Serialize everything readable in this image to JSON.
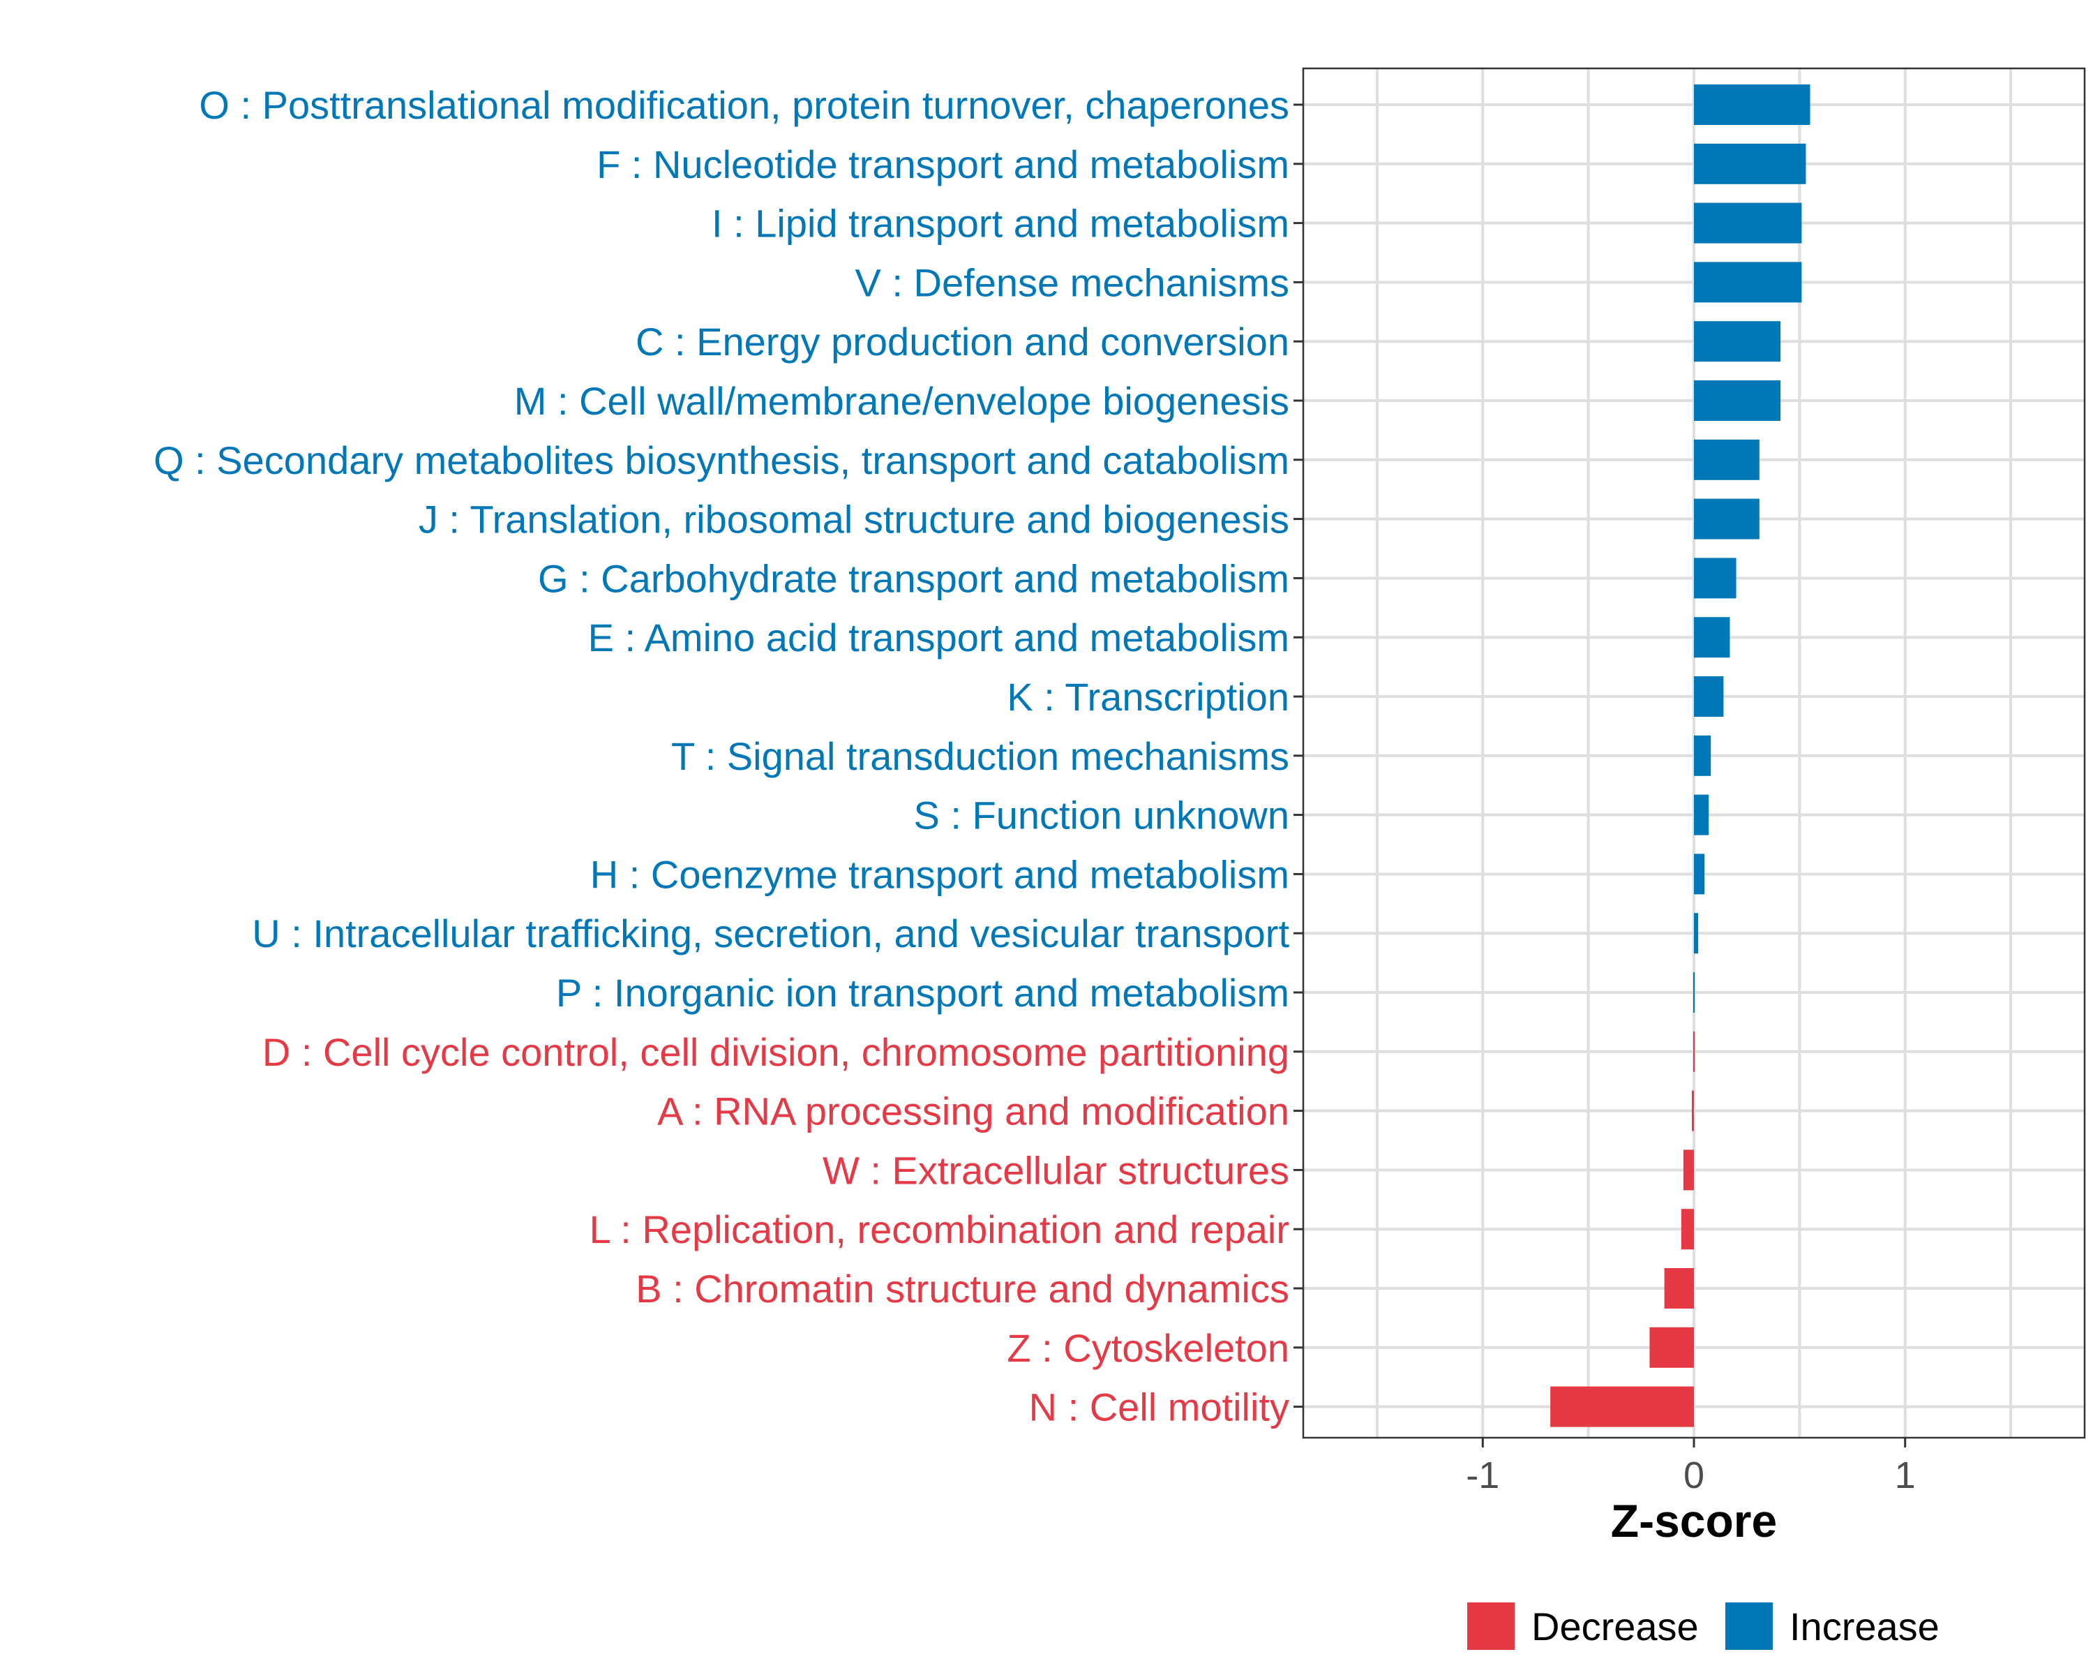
{
  "chart_data": {
    "type": "bar",
    "orientation": "horizontal",
    "title": "",
    "xlabel": "Z-score",
    "ylabel": "",
    "xlim": [
      -1.85,
      1.85
    ],
    "xticks": [
      -1,
      0,
      1
    ],
    "xtick_labels": [
      "-1",
      "0",
      "1"
    ],
    "grid": true,
    "colors": {
      "Decrease": "#e63946",
      "Increase": "#0077b6"
    },
    "legend": {
      "position": "bottom",
      "entries": [
        {
          "label": "Decrease",
          "color": "#e63946"
        },
        {
          "label": "Increase",
          "color": "#0077b6"
        }
      ]
    },
    "categories": [
      "O : Posttranslational modification, protein turnover, chaperones",
      "F : Nucleotide transport and metabolism",
      "I : Lipid transport and metabolism",
      "V : Defense mechanisms",
      "C : Energy production and conversion",
      "M : Cell wall/membrane/envelope biogenesis",
      "Q : Secondary metabolites biosynthesis, transport and catabolism",
      "J : Translation, ribosomal structure and biogenesis",
      "G : Carbohydrate transport and metabolism",
      "E : Amino acid transport and metabolism",
      "K : Transcription",
      "T : Signal transduction mechanisms",
      "S : Function unknown",
      "H : Coenzyme transport and metabolism",
      "U : Intracellular trafficking, secretion, and vesicular transport",
      "P : Inorganic ion transport and metabolism",
      "D : Cell cycle control, cell division, chromosome partitioning",
      "A : RNA processing and modification",
      "W : Extracellular structures",
      "L : Replication, recombination and repair",
      "B : Chromatin structure and dynamics",
      "Z : Cytoskeleton",
      "N : Cell motility"
    ],
    "values": [
      0.55,
      0.53,
      0.51,
      0.51,
      0.41,
      0.41,
      0.31,
      0.31,
      0.2,
      0.17,
      0.14,
      0.08,
      0.07,
      0.05,
      0.02,
      0.005,
      -0.005,
      -0.01,
      -0.05,
      -0.06,
      -0.14,
      -0.21,
      -0.68
    ],
    "groups": [
      "Increase",
      "Increase",
      "Increase",
      "Increase",
      "Increase",
      "Increase",
      "Increase",
      "Increase",
      "Increase",
      "Increase",
      "Increase",
      "Increase",
      "Increase",
      "Increase",
      "Increase",
      "Increase",
      "Decrease",
      "Decrease",
      "Decrease",
      "Decrease",
      "Decrease",
      "Decrease",
      "Decrease"
    ]
  }
}
